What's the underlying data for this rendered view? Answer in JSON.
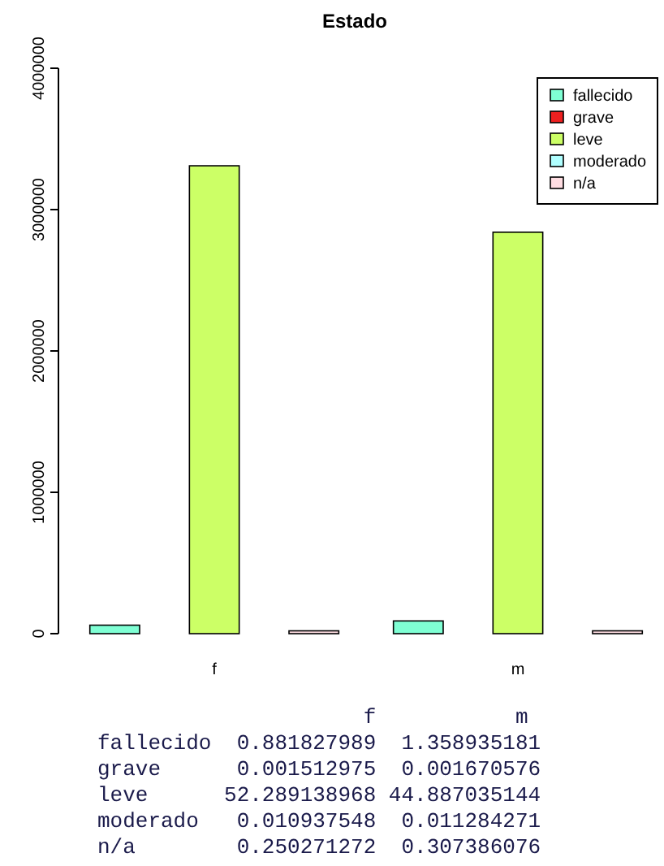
{
  "chart_data": {
    "type": "bar",
    "title": "Estado",
    "categories": [
      "f",
      "m"
    ],
    "series": [
      {
        "name": "fallecido",
        "color": "#7fffd4",
        "values": [
          60000,
          90000
        ]
      },
      {
        "name": "grave",
        "color": "#ee2020",
        "values": [
          0,
          0
        ]
      },
      {
        "name": "leve",
        "color": "#ccff66",
        "values": [
          3310000,
          2840000
        ]
      },
      {
        "name": "moderado",
        "color": "#b0ffff",
        "values": [
          0,
          0
        ]
      },
      {
        "name": "n/a",
        "color": "#ffdde2",
        "values": [
          20000,
          20000
        ]
      }
    ],
    "ylim": [
      0,
      4000000
    ],
    "yticks": [
      0,
      1000000,
      2000000,
      3000000,
      4000000
    ],
    "legend": "top right",
    "annotations": [
      "                     f           m",
      "fallecido  0.881827989  1.358935181",
      "grave      0.001512975  0.001670576",
      "leve      52.289138968 44.887035144",
      "moderado   0.010937548  0.011284271",
      "n/a        0.250271272  0.307386076"
    ]
  }
}
